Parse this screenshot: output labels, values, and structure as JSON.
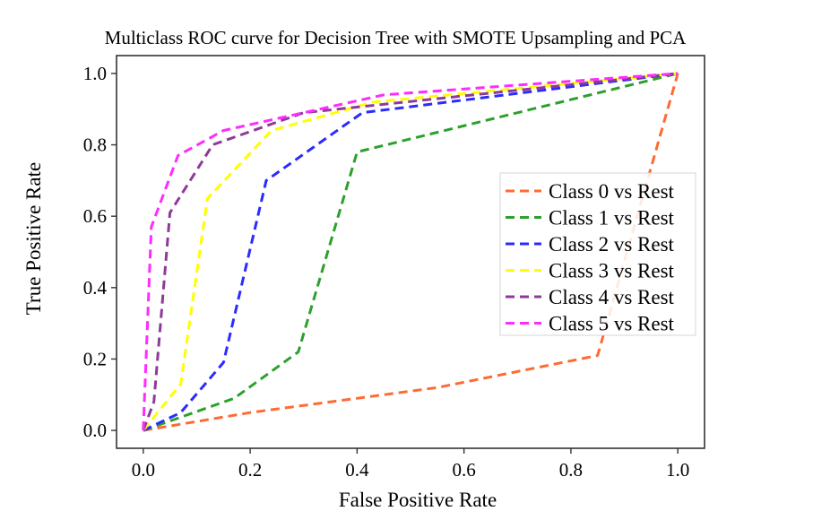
{
  "chart_data": {
    "type": "line",
    "title": "Multiclass ROC curve for Decision Tree with SMOTE Upsampling and PCA",
    "xlabel": "False Positive Rate",
    "ylabel": "True Positive Rate",
    "xlim": [
      -0.05,
      1.05
    ],
    "ylim": [
      -0.05,
      1.05
    ],
    "xticks": [
      "0.0",
      "0.2",
      "0.4",
      "0.6",
      "0.8",
      "1.0"
    ],
    "yticks": [
      "0.0",
      "0.2",
      "0.4",
      "0.6",
      "0.8",
      "1.0"
    ],
    "grid": false,
    "legend_position": "center-right",
    "series": [
      {
        "name": "Class 0 vs Rest",
        "color": "#ff6a33",
        "line_style": "dashed",
        "x": [
          0.0,
          0.2,
          0.55,
          0.85,
          1.0
        ],
        "y": [
          0.0,
          0.05,
          0.12,
          0.21,
          1.0
        ]
      },
      {
        "name": "Class 1 vs Rest",
        "color": "#2ca02c",
        "line_style": "dashed",
        "x": [
          0.0,
          0.17,
          0.29,
          0.4,
          1.0
        ],
        "y": [
          0.0,
          0.09,
          0.22,
          0.78,
          1.0
        ]
      },
      {
        "name": "Class 2 vs Rest",
        "color": "#2b2bff",
        "line_style": "dashed",
        "x": [
          0.0,
          0.07,
          0.15,
          0.23,
          0.41,
          1.0
        ],
        "y": [
          0.0,
          0.05,
          0.19,
          0.7,
          0.89,
          1.0
        ]
      },
      {
        "name": "Class 3 vs Rest",
        "color": "#ffff00",
        "line_style": "dashed",
        "x": [
          0.0,
          0.07,
          0.12,
          0.24,
          0.43,
          1.0
        ],
        "y": [
          0.0,
          0.13,
          0.65,
          0.84,
          0.92,
          1.0
        ]
      },
      {
        "name": "Class 4 vs Rest",
        "color": "#8e3a99",
        "line_style": "dashed",
        "x": [
          0.0,
          0.02,
          0.05,
          0.13,
          0.3,
          1.0
        ],
        "y": [
          0.0,
          0.08,
          0.61,
          0.8,
          0.89,
          1.0
        ]
      },
      {
        "name": "Class 5 vs Rest",
        "color": "#ff2bff",
        "line_style": "dashed",
        "x": [
          0.0,
          0.015,
          0.065,
          0.15,
          0.45,
          1.0
        ],
        "y": [
          0.0,
          0.57,
          0.77,
          0.84,
          0.94,
          1.0
        ]
      }
    ]
  }
}
